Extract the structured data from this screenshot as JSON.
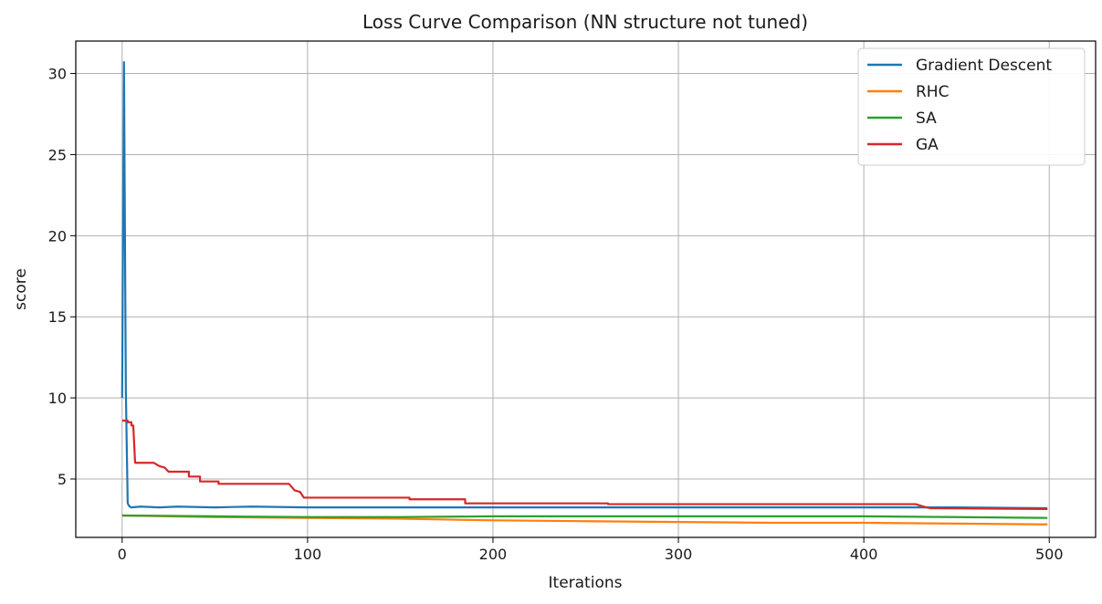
{
  "chart_data": {
    "type": "line",
    "title": "Loss Curve Comparison (NN structure not tuned)",
    "xlabel": "Iterations",
    "ylabel": "score",
    "xlim": [
      -25,
      525
    ],
    "ylim": [
      1.4,
      32.0
    ],
    "x_ticks": [
      0,
      100,
      200,
      300,
      400,
      500
    ],
    "y_ticks": [
      5,
      10,
      15,
      20,
      25,
      30
    ],
    "grid": true,
    "legend_position": "top-right",
    "series": [
      {
        "name": "Gradient Descent",
        "color": "#1f77b4",
        "points": [
          [
            0,
            10.0
          ],
          [
            1,
            30.7
          ],
          [
            2,
            10.5
          ],
          [
            3,
            3.5
          ],
          [
            4,
            3.3
          ],
          [
            5,
            3.25
          ],
          [
            10,
            3.3
          ],
          [
            20,
            3.25
          ],
          [
            30,
            3.3
          ],
          [
            50,
            3.25
          ],
          [
            70,
            3.3
          ],
          [
            100,
            3.25
          ],
          [
            150,
            3.25
          ],
          [
            200,
            3.25
          ],
          [
            250,
            3.25
          ],
          [
            300,
            3.25
          ],
          [
            350,
            3.25
          ],
          [
            400,
            3.25
          ],
          [
            450,
            3.25
          ],
          [
            499,
            3.2
          ]
        ]
      },
      {
        "name": "RHC",
        "color": "#ff7f0e",
        "points": [
          [
            0,
            2.75
          ],
          [
            50,
            2.65
          ],
          [
            100,
            2.6
          ],
          [
            150,
            2.55
          ],
          [
            200,
            2.45
          ],
          [
            250,
            2.4
          ],
          [
            300,
            2.35
          ],
          [
            350,
            2.3
          ],
          [
            400,
            2.3
          ],
          [
            450,
            2.25
          ],
          [
            499,
            2.2
          ]
        ]
      },
      {
        "name": "SA",
        "color": "#2ca02c",
        "points": [
          [
            0,
            2.75
          ],
          [
            50,
            2.7
          ],
          [
            100,
            2.65
          ],
          [
            150,
            2.65
          ],
          [
            200,
            2.7
          ],
          [
            250,
            2.7
          ],
          [
            300,
            2.7
          ],
          [
            350,
            2.7
          ],
          [
            400,
            2.7
          ],
          [
            450,
            2.65
          ],
          [
            499,
            2.6
          ]
        ]
      },
      {
        "name": "GA",
        "color": "#d62728",
        "points": [
          [
            0,
            8.6
          ],
          [
            3,
            8.6
          ],
          [
            3,
            8.5
          ],
          [
            5,
            8.5
          ],
          [
            5,
            8.3
          ],
          [
            6,
            8.3
          ],
          [
            7,
            6.0
          ],
          [
            17,
            6.0
          ],
          [
            20,
            5.8
          ],
          [
            23,
            5.7
          ],
          [
            25,
            5.45
          ],
          [
            36,
            5.45
          ],
          [
            36,
            5.15
          ],
          [
            42,
            5.15
          ],
          [
            42,
            4.85
          ],
          [
            52,
            4.85
          ],
          [
            52,
            4.7
          ],
          [
            90,
            4.7
          ],
          [
            93,
            4.3
          ],
          [
            96,
            4.2
          ],
          [
            98,
            3.85
          ],
          [
            155,
            3.85
          ],
          [
            155,
            3.75
          ],
          [
            185,
            3.75
          ],
          [
            185,
            3.5
          ],
          [
            262,
            3.5
          ],
          [
            262,
            3.45
          ],
          [
            428,
            3.45
          ],
          [
            432,
            3.3
          ],
          [
            436,
            3.2
          ],
          [
            499,
            3.15
          ]
        ]
      }
    ]
  }
}
